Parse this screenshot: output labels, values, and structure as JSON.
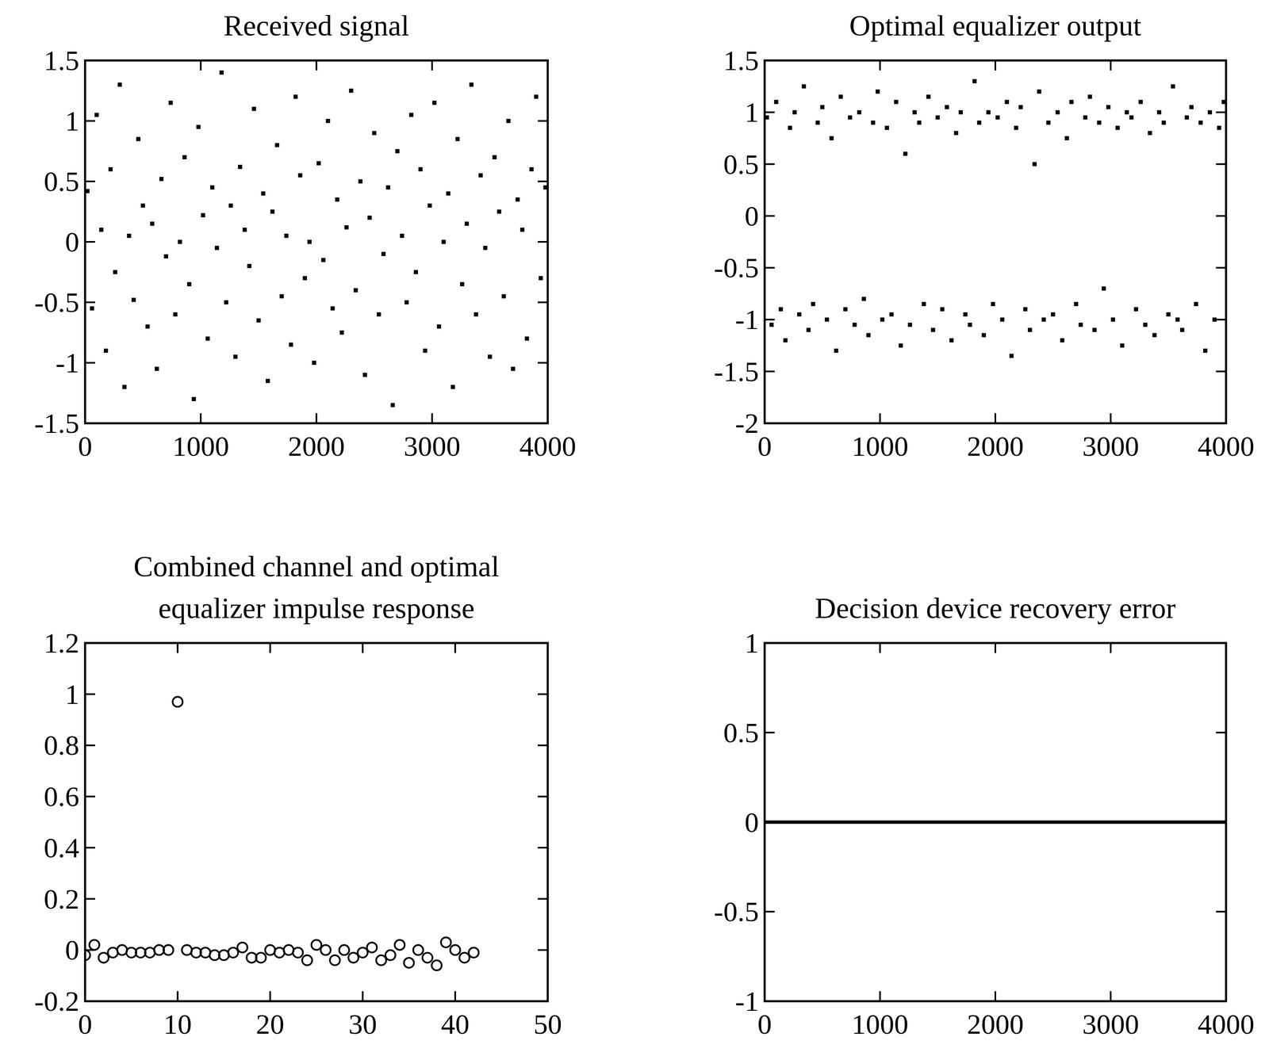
{
  "chart_data": [
    {
      "type": "scatter",
      "title": "Received signal",
      "marker": "square",
      "color": "#000000",
      "xlim": [
        0,
        4000
      ],
      "xticks": [
        0,
        1000,
        2000,
        3000,
        4000
      ],
      "ylim": [
        -1.5,
        1.5
      ],
      "yticks": [
        -1.5,
        -1,
        -0.5,
        0,
        0.5,
        1,
        1.5
      ],
      "x": [
        20,
        60,
        100,
        140,
        180,
        220,
        260,
        300,
        340,
        380,
        420,
        460,
        500,
        540,
        580,
        620,
        660,
        700,
        740,
        780,
        820,
        860,
        900,
        940,
        980,
        1020,
        1060,
        1100,
        1140,
        1180,
        1220,
        1260,
        1300,
        1340,
        1380,
        1420,
        1460,
        1500,
        1540,
        1580,
        1620,
        1660,
        1700,
        1740,
        1780,
        1820,
        1860,
        1900,
        1940,
        1980,
        2020,
        2060,
        2100,
        2140,
        2180,
        2220,
        2260,
        2300,
        2340,
        2380,
        2420,
        2460,
        2500,
        2540,
        2580,
        2620,
        2660,
        2700,
        2740,
        2780,
        2820,
        2860,
        2900,
        2940,
        2980,
        3020,
        3060,
        3100,
        3140,
        3180,
        3220,
        3260,
        3300,
        3340,
        3380,
        3420,
        3460,
        3500,
        3540,
        3580,
        3620,
        3660,
        3700,
        3740,
        3780,
        3820,
        3860,
        3900,
        3940,
        3980
      ],
      "values": [
        0.42,
        -0.55,
        1.05,
        0.1,
        -0.9,
        0.6,
        -0.25,
        1.3,
        -1.2,
        0.05,
        -0.48,
        0.85,
        0.3,
        -0.7,
        0.15,
        -1.05,
        0.52,
        -0.12,
        1.15,
        -0.6,
        0.0,
        0.7,
        -0.35,
        -1.3,
        0.95,
        0.22,
        -0.8,
        0.45,
        -0.05,
        1.4,
        -0.5,
        0.3,
        -0.95,
        0.62,
        0.1,
        -0.2,
        1.1,
        -0.65,
        0.4,
        -1.15,
        0.25,
        0.8,
        -0.45,
        0.05,
        -0.85,
        1.2,
        0.55,
        -0.3,
        0.0,
        -1.0,
        0.65,
        -0.15,
        1.0,
        -0.55,
        0.35,
        -0.75,
        0.12,
        1.25,
        -0.4,
        0.5,
        -1.1,
        0.2,
        0.9,
        -0.6,
        -0.1,
        0.45,
        -1.35,
        0.75,
        0.05,
        -0.5,
        1.05,
        -0.25,
        0.6,
        -0.9,
        0.3,
        1.15,
        -0.7,
        0.0,
        0.4,
        -1.2,
        0.85,
        -0.35,
        0.15,
        1.3,
        -0.6,
        0.55,
        -0.05,
        -0.95,
        0.7,
        0.25,
        -0.45,
        1.0,
        -1.05,
        0.35,
        0.1,
        -0.8,
        0.6,
        1.2,
        -0.3,
        0.45
      ]
    },
    {
      "type": "scatter",
      "title": "Optimal equalizer output",
      "marker": "square",
      "color": "#000000",
      "xlim": [
        0,
        4000
      ],
      "xticks": [
        0,
        1000,
        2000,
        3000,
        4000
      ],
      "ylim": [
        -2,
        1.5
      ],
      "yticks": [
        -2,
        -1.5,
        -1,
        -0.5,
        0,
        0.5,
        1,
        1.5
      ],
      "x": [
        20,
        60,
        100,
        140,
        180,
        220,
        260,
        300,
        340,
        380,
        420,
        460,
        500,
        540,
        580,
        620,
        660,
        700,
        740,
        780,
        820,
        860,
        900,
        940,
        980,
        1020,
        1060,
        1100,
        1140,
        1180,
        1220,
        1260,
        1300,
        1340,
        1380,
        1420,
        1460,
        1500,
        1540,
        1580,
        1620,
        1660,
        1700,
        1740,
        1780,
        1820,
        1860,
        1900,
        1940,
        1980,
        2020,
        2060,
        2100,
        2140,
        2180,
        2220,
        2260,
        2300,
        2340,
        2380,
        2420,
        2460,
        2500,
        2540,
        2580,
        2620,
        2660,
        2700,
        2740,
        2780,
        2820,
        2860,
        2900,
        2940,
        2980,
        3020,
        3060,
        3100,
        3140,
        3180,
        3220,
        3260,
        3300,
        3340,
        3380,
        3420,
        3460,
        3500,
        3540,
        3580,
        3620,
        3660,
        3700,
        3740,
        3780,
        3820,
        3860,
        3900,
        3940,
        3980
      ],
      "values": [
        0.95,
        -1.05,
        1.1,
        -0.9,
        -1.2,
        0.85,
        1.0,
        -0.95,
        1.25,
        -1.1,
        -0.85,
        0.9,
        1.05,
        -1.0,
        0.75,
        -1.3,
        1.15,
        -0.9,
        0.95,
        -1.05,
        1.0,
        -0.8,
        -1.15,
        0.9,
        1.2,
        -1.0,
        0.85,
        -0.95,
        1.1,
        -1.25,
        0.6,
        -1.05,
        1.0,
        0.9,
        -0.85,
        1.15,
        -1.1,
        0.95,
        -0.9,
        1.05,
        -1.2,
        0.8,
        1.0,
        -0.95,
        -1.05,
        1.3,
        0.9,
        -1.15,
        1.0,
        -0.85,
        0.95,
        -1.0,
        1.1,
        -1.35,
        0.85,
        1.05,
        -0.9,
        -1.1,
        0.5,
        1.2,
        -1.0,
        0.9,
        -0.95,
        1.0,
        -1.2,
        0.75,
        1.1,
        -0.85,
        -1.05,
        0.95,
        1.15,
        -1.1,
        0.9,
        -0.7,
        1.05,
        -1.0,
        0.85,
        -1.25,
        1.0,
        0.95,
        -0.9,
        1.1,
        -1.05,
        0.8,
        -1.15,
        1.0,
        0.9,
        -0.95,
        1.25,
        -1.0,
        -1.1,
        0.95,
        1.05,
        -0.85,
        0.9,
        -1.3,
        1.0,
        -1.0,
        0.85,
        1.1
      ]
    },
    {
      "type": "scatter",
      "title": "Combined channel and optimal\nequalizer impulse response",
      "marker": "circle",
      "color": "#000000",
      "xlim": [
        0,
        50
      ],
      "xticks": [
        0,
        10,
        20,
        30,
        40,
        50
      ],
      "ylim": [
        -0.2,
        1.2
      ],
      "yticks": [
        -0.2,
        0,
        0.2,
        0.4,
        0.6,
        0.8,
        1,
        1.2
      ],
      "x": [
        0,
        1,
        2,
        3,
        4,
        5,
        6,
        7,
        8,
        9,
        10,
        11,
        12,
        13,
        14,
        15,
        16,
        17,
        18,
        19,
        20,
        21,
        22,
        23,
        24,
        25,
        26,
        27,
        28,
        29,
        30,
        31,
        32,
        33,
        34,
        35,
        36,
        37,
        38,
        39,
        40,
        41,
        42
      ],
      "values": [
        -0.02,
        0.02,
        -0.03,
        -0.01,
        0.0,
        -0.01,
        -0.01,
        -0.01,
        0.0,
        0.0,
        0.97,
        0.0,
        -0.01,
        -0.01,
        -0.02,
        -0.02,
        -0.01,
        0.01,
        -0.03,
        -0.03,
        0.0,
        -0.01,
        0.0,
        -0.01,
        -0.04,
        0.02,
        0.0,
        -0.04,
        0.0,
        -0.03,
        -0.01,
        0.01,
        -0.04,
        -0.02,
        0.02,
        -0.05,
        0.0,
        -0.03,
        -0.06,
        0.03,
        0.0,
        -0.03,
        -0.01
      ]
    },
    {
      "type": "line",
      "title": "Decision device recovery error",
      "color": "#000000",
      "xlim": [
        0,
        4000
      ],
      "xticks": [
        0,
        1000,
        2000,
        3000,
        4000
      ],
      "ylim": [
        -1,
        1
      ],
      "yticks": [
        -1,
        -0.5,
        0,
        0.5,
        1
      ],
      "x": [
        0,
        4000
      ],
      "values": [
        0,
        0
      ]
    }
  ]
}
